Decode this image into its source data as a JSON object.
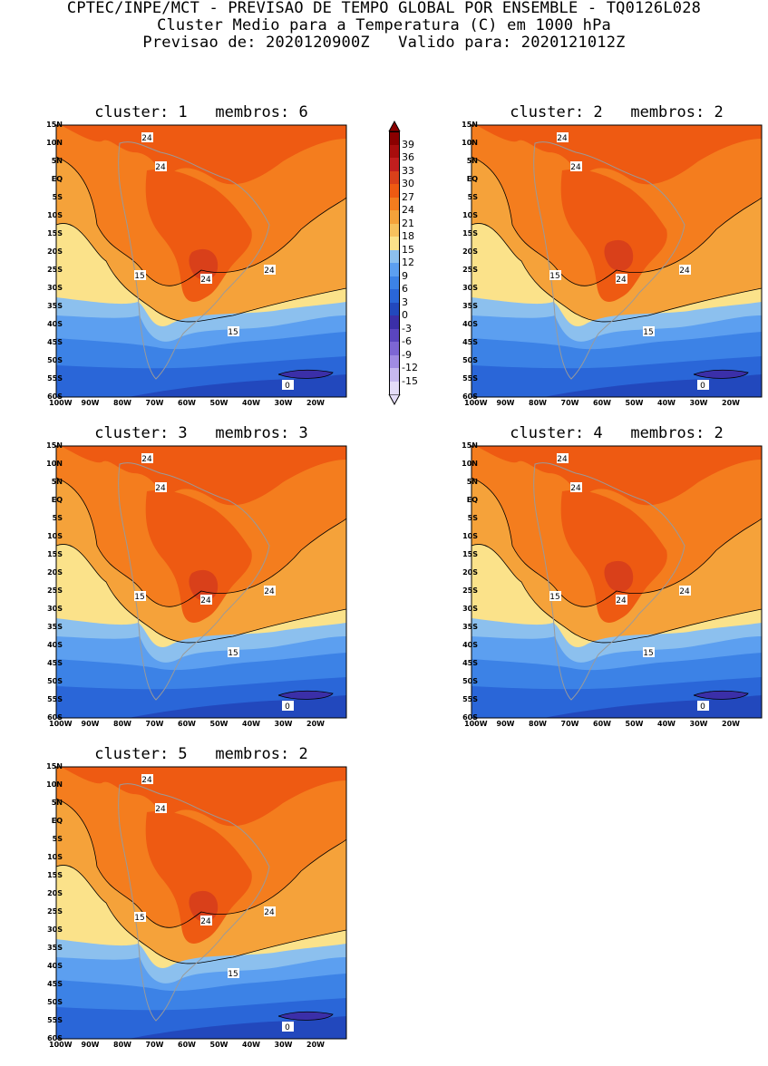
{
  "header": {
    "line1": "CPTEC/INPE/MCT - PREVISAO DE TEMPO GLOBAL POR ENSEMBLE - TQ0126L028",
    "line2": "Cluster Medio para a Temperatura (C) em 1000 hPa",
    "line3": "Previsao de: 2020120900Z   Valido para: 2020121012Z"
  },
  "panels": [
    {
      "title": "cluster: 1   membros: 6"
    },
    {
      "title": "cluster: 2   membros: 2"
    },
    {
      "title": "cluster: 3   membros: 3"
    },
    {
      "title": "cluster: 4   membros: 2"
    },
    {
      "title": "cluster: 5   membros: 2"
    }
  ],
  "y_ticks": [
    "15N",
    "10N",
    "5N",
    "EQ",
    "5S",
    "10S",
    "15S",
    "20S",
    "25S",
    "30S",
    "35S",
    "40S",
    "45S",
    "50S",
    "55S",
    "60S"
  ],
  "x_ticks": [
    "100W",
    "90W",
    "80W",
    "70W",
    "60W",
    "50W",
    "40W",
    "30W",
    "20W"
  ],
  "contour_labels": [
    "24",
    "24",
    "15",
    "24",
    "24",
    "15",
    "0"
  ],
  "colorbar": {
    "levels": [
      "39",
      "36",
      "33",
      "30",
      "27",
      "24",
      "21",
      "18",
      "15",
      "12",
      "9",
      "6",
      "3",
      "0",
      "-3",
      "-6",
      "-9",
      "-12",
      "-15"
    ],
    "colors": [
      "#8b0000",
      "#a80d0d",
      "#c21e1e",
      "#d9401a",
      "#ee5a12",
      "#f47d1e",
      "#f5a23a",
      "#f7c15d",
      "#fbe28a",
      "#8cc0ee",
      "#5c9ff0",
      "#3c82e6",
      "#2a66d8",
      "#2248bd",
      "#3b2fa8",
      "#5a45bf",
      "#7d66d4",
      "#a08be3",
      "#c6b8ef",
      "#e4dcf8"
    ]
  }
}
